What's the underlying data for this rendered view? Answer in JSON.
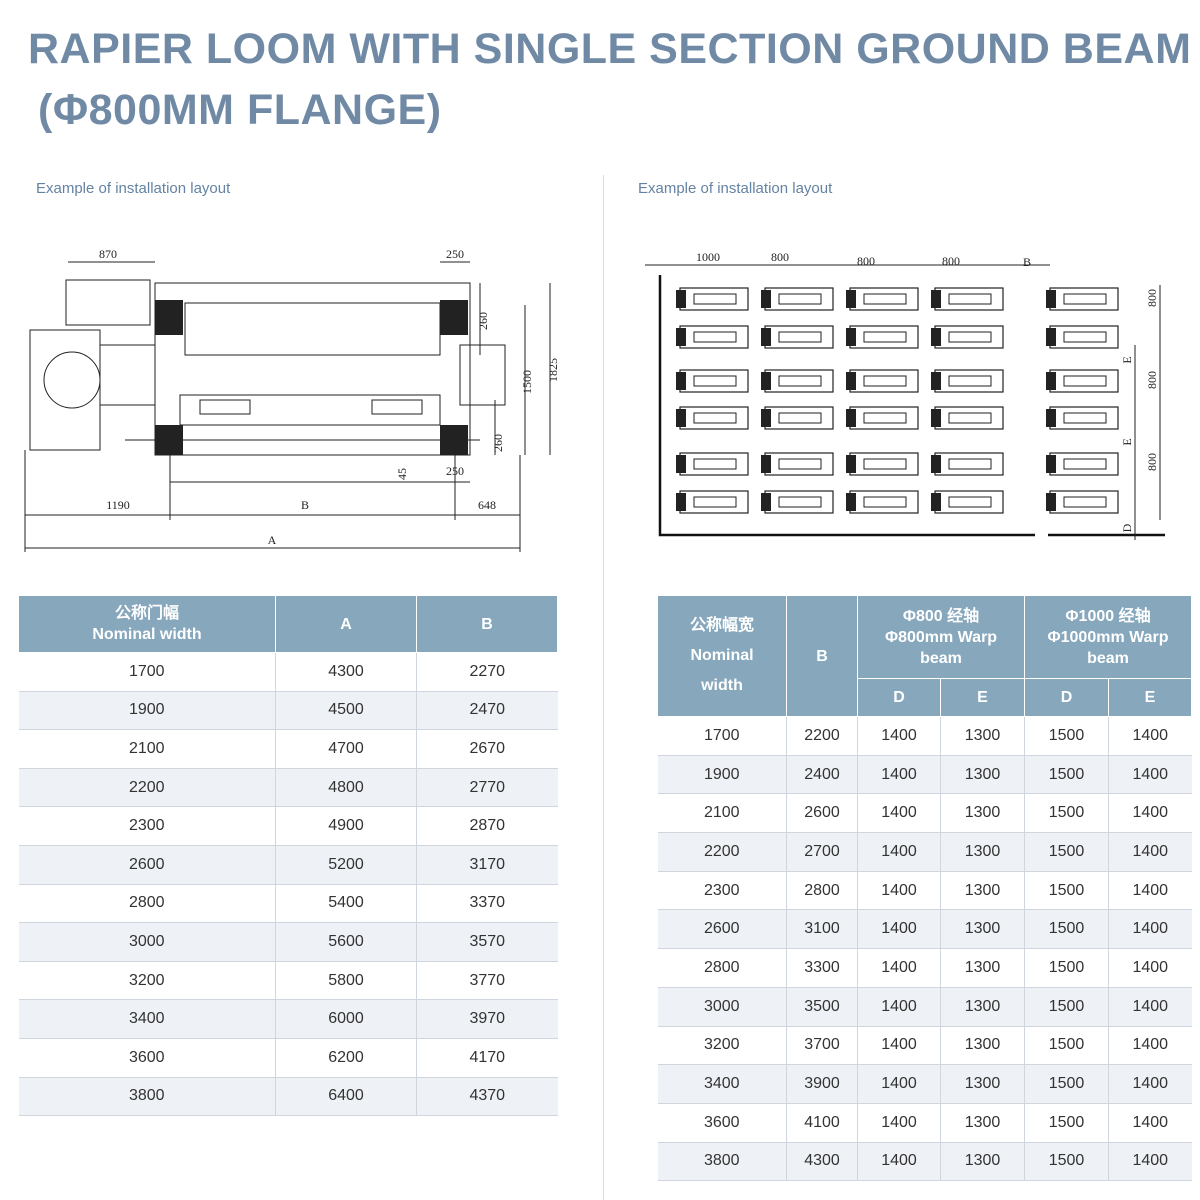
{
  "title": [
    "RAPIER LOOM WITH SINGLE SECTION GROUND BEAM",
    "(Φ800MM FLANGE)"
  ],
  "left": {
    "caption": "Example of installation layout",
    "drawing_labels": [
      "870",
      "250",
      "260",
      "1500",
      "1825",
      "260",
      "250",
      "45",
      "1190",
      "B",
      "648",
      "A"
    ],
    "table": {
      "header": [
        [
          "公称门幅",
          "Nominal width"
        ],
        [
          "A"
        ],
        [
          "B"
        ]
      ],
      "rows": [
        [
          1700,
          4300,
          2270
        ],
        [
          1900,
          4500,
          2470
        ],
        [
          2100,
          4700,
          2670
        ],
        [
          2200,
          4800,
          2770
        ],
        [
          2300,
          4900,
          2870
        ],
        [
          2600,
          5200,
          3170
        ],
        [
          2800,
          5400,
          3370
        ],
        [
          3000,
          5600,
          3570
        ],
        [
          3200,
          5800,
          3770
        ],
        [
          3400,
          6000,
          3970
        ],
        [
          3600,
          6200,
          4170
        ],
        [
          3800,
          6400,
          4370
        ]
      ]
    }
  },
  "right": {
    "caption": "Example of installation layout",
    "drawing_labels": [
      "1000",
      "800",
      "800",
      "800",
      "B",
      "800",
      "E",
      "800",
      "E",
      "800",
      "D"
    ],
    "table": {
      "header": {
        "nominal": [
          "公称幅宽",
          "Nominal",
          "width"
        ],
        "b": "B",
        "groups": [
          {
            "lines": [
              "Φ800 经轴",
              "Φ800mm Warp",
              "beam"
            ],
            "sub": [
              "D",
              "E"
            ]
          },
          {
            "lines": [
              "Φ1000 经轴",
              "Φ1000mm Warp",
              "beam"
            ],
            "sub": [
              "D",
              "E"
            ]
          }
        ]
      },
      "rows": [
        [
          1700,
          2200,
          1400,
          1300,
          1500,
          1400
        ],
        [
          1900,
          2400,
          1400,
          1300,
          1500,
          1400
        ],
        [
          2100,
          2600,
          1400,
          1300,
          1500,
          1400
        ],
        [
          2200,
          2700,
          1400,
          1300,
          1500,
          1400
        ],
        [
          2300,
          2800,
          1400,
          1300,
          1500,
          1400
        ],
        [
          2600,
          3100,
          1400,
          1300,
          1500,
          1400
        ],
        [
          2800,
          3300,
          1400,
          1300,
          1500,
          1400
        ],
        [
          3000,
          3500,
          1400,
          1300,
          1500,
          1400
        ],
        [
          3200,
          3700,
          1400,
          1300,
          1500,
          1400
        ],
        [
          3400,
          3900,
          1400,
          1300,
          1500,
          1400
        ],
        [
          3600,
          4100,
          1400,
          1300,
          1500,
          1400
        ],
        [
          3800,
          4300,
          1400,
          1300,
          1500,
          1400
        ]
      ]
    }
  }
}
